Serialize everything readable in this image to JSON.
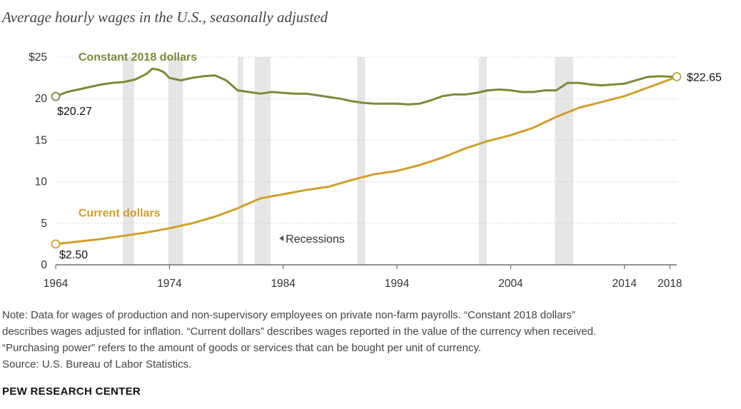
{
  "chart_data": {
    "type": "line",
    "title": "Average hourly wages in the U.S., seasonally adjusted",
    "xlabel": "",
    "ylabel": "",
    "xlim": [
      1964,
      2018.6
    ],
    "ylim": [
      0,
      25
    ],
    "x_ticks": [
      {
        "value": 1964,
        "label": "1964"
      },
      {
        "value": 1974,
        "label": "1974"
      },
      {
        "value": 1984,
        "label": "1984"
      },
      {
        "value": 1994,
        "label": "1994"
      },
      {
        "value": 2004,
        "label": "2004"
      },
      {
        "value": 2014,
        "label": "2014"
      },
      {
        "value": 2018,
        "label": "2018"
      }
    ],
    "y_ticks": [
      {
        "value": 0,
        "label": "0"
      },
      {
        "value": 5,
        "label": "5"
      },
      {
        "value": 10,
        "label": "10"
      },
      {
        "value": 15,
        "label": "15"
      },
      {
        "value": 20,
        "label": "20"
      },
      {
        "value": 25,
        "label": "$25"
      }
    ],
    "grid": "horizontal dotted",
    "recessions": [
      [
        1969.9,
        1970.9
      ],
      [
        1973.9,
        1975.2
      ],
      [
        1980.0,
        1980.5
      ],
      [
        1981.5,
        1982.9
      ],
      [
        1990.5,
        1991.2
      ],
      [
        2001.2,
        2001.9
      ],
      [
        2007.9,
        2009.5
      ]
    ],
    "recessions_label": "Recessions",
    "series": [
      {
        "name": "Constant 2018 dollars",
        "color": "#7a8b37",
        "start_label": "$20.27",
        "x": [
          1964,
          1965,
          1966,
          1967,
          1968,
          1969,
          1970,
          1971,
          1972,
          1972.5,
          1973,
          1973.5,
          1974,
          1975,
          1976,
          1977,
          1978,
          1979,
          1980,
          1981,
          1982,
          1983,
          1984,
          1985,
          1986,
          1987,
          1988,
          1989,
          1990,
          1991,
          1992,
          1993,
          1994,
          1995,
          1996,
          1997,
          1998,
          1999,
          2000,
          2001,
          2002,
          2003,
          2004,
          2005,
          2006,
          2007,
          2008,
          2009,
          2010,
          2011,
          2012,
          2013,
          2014,
          2015,
          2016,
          2017,
          2018,
          2018.6
        ],
        "values": [
          20.27,
          20.8,
          21.1,
          21.4,
          21.7,
          21.9,
          22.0,
          22.3,
          23.0,
          23.6,
          23.5,
          23.2,
          22.5,
          22.2,
          22.5,
          22.7,
          22.8,
          22.2,
          21.0,
          20.8,
          20.6,
          20.8,
          20.7,
          20.6,
          20.6,
          20.4,
          20.2,
          20.0,
          19.7,
          19.5,
          19.4,
          19.4,
          19.4,
          19.3,
          19.4,
          19.8,
          20.3,
          20.5,
          20.5,
          20.7,
          21.0,
          21.1,
          21.0,
          20.8,
          20.8,
          21.0,
          21.0,
          21.9,
          21.9,
          21.7,
          21.6,
          21.7,
          21.8,
          22.2,
          22.6,
          22.7,
          22.65,
          22.65
        ]
      },
      {
        "name": "Current dollars",
        "color": "#d19f2a",
        "start_label": "$2.50",
        "end_label": "$22.65",
        "x": [
          1964,
          1966,
          1968,
          1970,
          1972,
          1974,
          1976,
          1978,
          1980,
          1982,
          1984,
          1986,
          1988,
          1990,
          1992,
          1994,
          1996,
          1998,
          2000,
          2002,
          2004,
          2006,
          2008,
          2010,
          2012,
          2014,
          2016,
          2018,
          2018.6
        ],
        "values": [
          2.5,
          2.8,
          3.1,
          3.5,
          3.9,
          4.4,
          5.0,
          5.8,
          6.8,
          8.0,
          8.5,
          9.0,
          9.4,
          10.2,
          10.9,
          11.3,
          12.0,
          12.9,
          14.0,
          14.9,
          15.6,
          16.5,
          17.8,
          18.9,
          19.6,
          20.3,
          21.3,
          22.3,
          22.65
        ]
      }
    ]
  },
  "notes": {
    "line1": "Note: Data for wages of production and non-supervisory employees on private non-farm payrolls. “Constant 2018 dollars”",
    "line2": "describes wages adjusted for inflation. “Current dollars” describes wages reported in the value of the currency when received.",
    "line3": "“Purchasing power” refers to the amount of goods or services that can be bought per unit of currency.",
    "source": "Source: U.S. Bureau of Labor Statistics."
  },
  "brand": "PEW RESEARCH CENTER"
}
